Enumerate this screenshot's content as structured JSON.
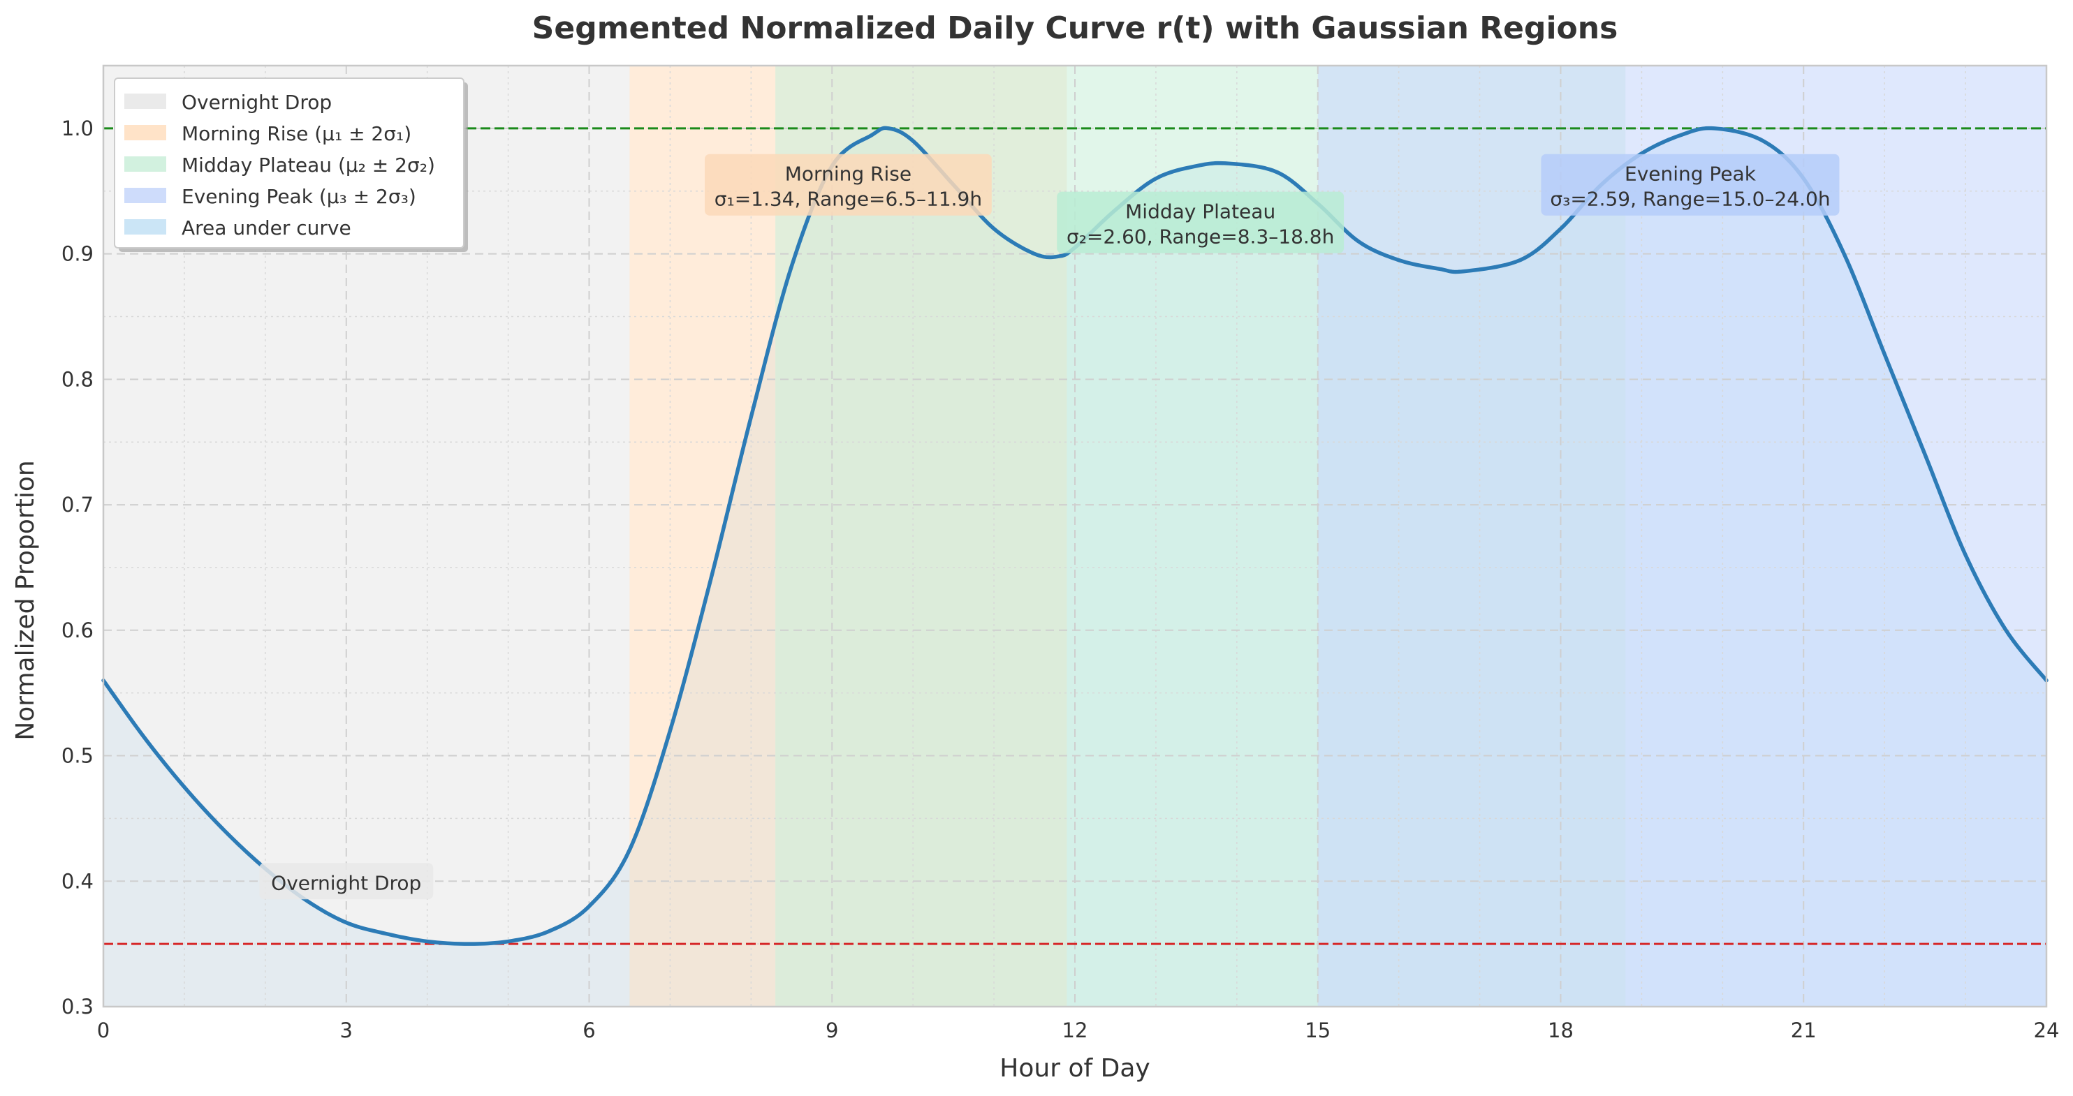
{
  "chart_data": {
    "type": "line",
    "title": "Segmented Normalized Daily Curve r(t) with Gaussian Regions",
    "xlabel": "Hour of Day",
    "ylabel": "Normalized Proportion",
    "xlim": [
      0,
      24
    ],
    "ylim": [
      0.3,
      1.05
    ],
    "x_ticks": [
      0,
      3,
      6,
      9,
      12,
      15,
      18,
      21,
      24
    ],
    "y_ticks": [
      0.3,
      0.4,
      0.5,
      0.6,
      0.7,
      0.8,
      0.9,
      1.0
    ],
    "grid": true,
    "legend_position": "top-left",
    "series": [
      {
        "name": "",
        "color": "#2c7bb6",
        "x": [
          0,
          0.5,
          1,
          1.5,
          2,
          2.5,
          3,
          3.5,
          4,
          4.5,
          5,
          5.5,
          6,
          6.5,
          7,
          7.5,
          8,
          8.5,
          9,
          9.5,
          9.7,
          10,
          10.5,
          11,
          11.5,
          11.8,
          12,
          12.5,
          13,
          13.5,
          13.9,
          14.5,
          15,
          15.5,
          16,
          16.5,
          16.8,
          17.5,
          18,
          18.5,
          19,
          19.5,
          19.9,
          20.5,
          21,
          21.5,
          22,
          22.5,
          23,
          23.5,
          24
        ],
        "y": [
          0.56,
          0.515,
          0.475,
          0.44,
          0.41,
          0.385,
          0.367,
          0.358,
          0.352,
          0.35,
          0.352,
          0.36,
          0.38,
          0.425,
          0.52,
          0.64,
          0.77,
          0.89,
          0.97,
          0.995,
          1.0,
          0.99,
          0.955,
          0.92,
          0.9,
          0.898,
          0.905,
          0.935,
          0.96,
          0.97,
          0.972,
          0.965,
          0.94,
          0.91,
          0.895,
          0.888,
          0.886,
          0.895,
          0.92,
          0.955,
          0.98,
          0.995,
          1.0,
          0.99,
          0.96,
          0.9,
          0.82,
          0.74,
          0.66,
          0.6,
          0.56
        ]
      }
    ],
    "regions": [
      {
        "name": "Overnight Drop",
        "x0": 0,
        "x1": 6.5,
        "color": "#e8e8e8",
        "opacity": 0.55
      },
      {
        "name": "Morning Rise (μ₁ ± 2σ₁)",
        "x0": 6.5,
        "x1": 11.9,
        "color": "#ffe0c2",
        "opacity": 0.6
      },
      {
        "name": "Midday Plateau (μ₂ ± 2σ₂)",
        "x0": 8.3,
        "x1": 18.8,
        "color": "#cdf0dc",
        "opacity": 0.6
      },
      {
        "name": "Evening Peak (μ₃ ± 2σ₃)",
        "x0": 15.0,
        "x1": 24.0,
        "color": "#c9d8fb",
        "opacity": 0.6
      }
    ],
    "area_under_curve": {
      "name": "Area under curve",
      "color": "#b9dcf3",
      "x0": 0,
      "x1": 24
    },
    "reference_lines": [
      {
        "y": 1.0,
        "color": "#1a8a1a",
        "style": "dashed"
      },
      {
        "y": 0.35,
        "color": "#d62728",
        "style": "dashed"
      }
    ],
    "annotations": [
      {
        "lines": [
          "Overnight Drop"
        ],
        "x": 3.0,
        "y": 0.4,
        "color": "#e9e9e9"
      },
      {
        "lines": [
          "Morning Rise",
          "σ₁=1.34, Range=6.5–11.9h"
        ],
        "x": 9.2,
        "y": 0.955,
        "color": "#fbd9b8"
      },
      {
        "lines": [
          "Midday Plateau",
          "σ₂=2.60, Range=8.3–18.8h"
        ],
        "x": 13.55,
        "y": 0.925,
        "color": "#b9ecd4"
      },
      {
        "lines": [
          "Evening Peak",
          "σ₃=2.59, Range=15.0–24.0h"
        ],
        "x": 19.6,
        "y": 0.955,
        "color": "#b5cdf9"
      }
    ]
  }
}
